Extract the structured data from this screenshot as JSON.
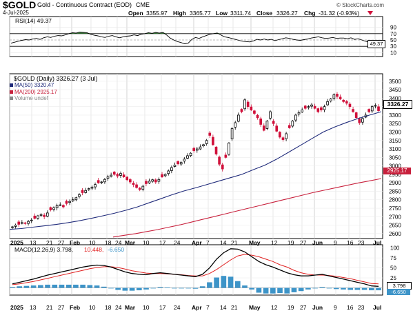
{
  "header": {
    "symbol": "$GOLD",
    "description": "Gold - Continuous Contract (EOD)",
    "exchange": "CME",
    "date": "4-Jul-2025",
    "open_label": "Open",
    "open": "3355.97",
    "high_label": "High",
    "high": "3365.77",
    "low_label": "Low",
    "low": "3311.74",
    "close_label": "Close",
    "close": "3326.27",
    "chg_label": "Chg",
    "chg": "-31.32 (-0.93%)",
    "chg_icon": "down-triangle-icon",
    "watermark": "© StockCharts.com"
  },
  "colors": {
    "up": "#000000",
    "down": "#d0103a",
    "ma50": "#1f2a7a",
    "ma200": "#c8203c",
    "rsi_fill": "#3a8a3a",
    "macd_line": "#000000",
    "signal_line": "#e02020",
    "histogram": "#3d94c8"
  },
  "rsi_panel": {
    "label": "RSI(14) 49.37",
    "current": "49.37",
    "ylabels": [
      "90",
      "70",
      "50",
      "30",
      "10"
    ],
    "ylim": [
      0,
      100
    ],
    "levels": [
      70,
      30
    ],
    "mid": 50,
    "values": [
      40,
      43,
      46,
      49,
      51,
      50,
      53,
      55,
      52,
      57,
      60,
      58,
      62,
      64,
      63,
      66,
      70,
      73,
      72,
      75,
      74,
      73,
      68,
      65,
      63,
      60,
      58,
      62,
      64,
      60,
      57,
      60,
      62,
      63,
      66,
      64,
      68,
      70,
      73,
      71,
      74,
      72,
      74,
      66,
      56,
      50,
      45,
      42,
      38,
      40,
      52,
      58,
      55,
      60,
      64,
      68,
      70,
      72,
      66,
      60,
      58,
      55,
      52,
      49,
      46,
      45,
      44,
      47,
      52,
      50,
      53,
      50,
      52,
      48,
      51,
      54,
      57,
      55,
      52,
      50,
      49,
      51,
      53,
      56,
      58,
      60,
      57,
      55,
      56,
      58,
      55,
      56,
      56,
      54,
      57,
      52,
      54,
      50,
      46,
      43,
      49,
      49,
      49
    ]
  },
  "price_panel": {
    "title": "$GOLD (Daily) 3326.27 (3 Jul)",
    "legend": [
      {
        "label": "MA(50) 3320.47",
        "color": "#1f2a7a"
      },
      {
        "label": "MA(200) 2925.17",
        "color": "#c8203c"
      },
      {
        "label": "Volume undef",
        "color": "#888888"
      }
    ],
    "badge_close": "3326.27",
    "badge_ma200": "2925.17",
    "ylabels": [
      "3500",
      "3450",
      "3400",
      "3350",
      "3300",
      "3250",
      "3200",
      "3150",
      "3100",
      "3050",
      "3000",
      "2950",
      "2900",
      "2850",
      "2800",
      "2750",
      "2700",
      "2650",
      "2600"
    ],
    "ylim": [
      2575,
      3540
    ]
  },
  "macd_panel": {
    "label": "MACD(12,26,9) 3.798, 10.448, -6.650",
    "label_macd": "MACD(12,26,9) 3.798,",
    "label_signal": "10.448,",
    "label_hist": "-6.650",
    "badge_macd": "3.798",
    "badge_hist": "-6.650",
    "ylabels": [
      "100",
      "75",
      "50",
      "25",
      "0"
    ],
    "ylim": [
      -18,
      108
    ]
  },
  "xaxis": {
    "labels": [
      {
        "text": "2025",
        "bold": true
      },
      {
        "text": "13"
      },
      {
        "text": "21"
      },
      {
        "text": "27"
      },
      {
        "text": "Feb",
        "bold": true
      },
      {
        "text": "10"
      },
      {
        "text": "18"
      },
      {
        "text": "24"
      },
      {
        "text": "Mar",
        "bold": true
      },
      {
        "text": "10"
      },
      {
        "text": "17"
      },
      {
        "text": "24"
      },
      {
        "text": "Apr",
        "bold": true
      },
      {
        "text": "7"
      },
      {
        "text": "14"
      },
      {
        "text": "21"
      },
      {
        "text": "May",
        "bold": true
      },
      {
        "text": "12"
      },
      {
        "text": "19"
      },
      {
        "text": "27"
      },
      {
        "text": "Jun",
        "bold": true
      },
      {
        "text": "9"
      },
      {
        "text": "16"
      },
      {
        "text": "23"
      },
      {
        "text": "Jul",
        "bold": true
      }
    ]
  },
  "chart_data": {
    "type": "candlestick",
    "title": "$GOLD (Daily) 3326.27 (3 Jul)",
    "x_start": "2025-01-02",
    "x_end": "2025-07-03",
    "ylim": [
      2575,
      3540
    ],
    "close": [
      2640,
      2650,
      2655,
      2665,
      2660,
      2672,
      2680,
      2690,
      2705,
      2712,
      2700,
      2722,
      2740,
      2752,
      2765,
      2770,
      2758,
      2778,
      2790,
      2800,
      2812,
      2830,
      2842,
      2855,
      2866,
      2875,
      2890,
      2900,
      2905,
      2920,
      2935,
      2945,
      2950,
      2940,
      2955,
      2935,
      2918,
      2905,
      2890,
      2872,
      2860,
      2880,
      2895,
      2910,
      2918,
      2905,
      2920,
      2935,
      2950,
      2970,
      2990,
      3005,
      3012,
      3020,
      3040,
      3060,
      3075,
      3090,
      3100,
      3112,
      3125,
      3150,
      3180,
      3125,
      3070,
      3010,
      2982,
      3050,
      3135,
      3220,
      3255,
      3300,
      3320,
      3390,
      3350,
      3330,
      3310,
      3285,
      3245,
      3210,
      3265,
      3320,
      3250,
      3205,
      3170,
      3155,
      3190,
      3225,
      3265,
      3300,
      3315,
      3330,
      3340,
      3350,
      3360,
      3340,
      3320,
      3330,
      3350,
      3380,
      3395,
      3420,
      3410,
      3395,
      3380,
      3370,
      3350,
      3320,
      3285,
      3255,
      3280,
      3300,
      3320,
      3350,
      3357,
      3326
    ],
    "ma50": [
      2625,
      2630,
      2638,
      2646,
      2654,
      2664,
      2676,
      2690,
      2705,
      2720,
      2738,
      2758,
      2782,
      2806,
      2830,
      2852,
      2870,
      2890,
      2910,
      2930,
      2950,
      2978,
      3005,
      3040,
      3080,
      3120,
      3160,
      3200,
      3230,
      3256,
      3280,
      3300,
      3320
    ],
    "ma200": [
      2580,
      2590,
      2600,
      2612,
      2624,
      2638,
      2652,
      2668,
      2684,
      2700,
      2716,
      2732,
      2748,
      2764,
      2780,
      2796,
      2812,
      2828,
      2844,
      2858,
      2872,
      2886,
      2900,
      2912,
      2925
    ],
    "macd": [
      10,
      14,
      18,
      22,
      27,
      32,
      36,
      40,
      44,
      48,
      52,
      55,
      57,
      56,
      52,
      46,
      40,
      36,
      34,
      33,
      36,
      38,
      36,
      34,
      32,
      30,
      28,
      34,
      50,
      72,
      88,
      98,
      97,
      90,
      78,
      66,
      58,
      52,
      45,
      38,
      33,
      30,
      30,
      32,
      34,
      30,
      26,
      22,
      18,
      14,
      10,
      5,
      4
    ],
    "signal": [
      8,
      10,
      13,
      16,
      20,
      24,
      28,
      32,
      36,
      40,
      44,
      48,
      51,
      53,
      53,
      51,
      47,
      43,
      40,
      37,
      36,
      36,
      35,
      34,
      33,
      31,
      30,
      30,
      36,
      46,
      58,
      70,
      80,
      84,
      82,
      78,
      72,
      66,
      58,
      52,
      44,
      38,
      34,
      32,
      32,
      31,
      29,
      26,
      23,
      19,
      15,
      11,
      10
    ],
    "histogram": [
      2,
      4,
      5,
      6,
      7,
      8,
      8,
      8,
      8,
      8,
      8,
      7,
      6,
      3,
      -1,
      -5,
      -7,
      -7,
      -6,
      -4,
      0,
      2,
      1,
      0,
      -1,
      -1,
      -2,
      4,
      14,
      26,
      30,
      28,
      17,
      6,
      -4,
      -12,
      -14,
      -14,
      -13,
      -14,
      -11,
      -8,
      -4,
      0,
      2,
      -1,
      -3,
      -4,
      -5,
      -5,
      -5,
      -6,
      -6
    ]
  }
}
